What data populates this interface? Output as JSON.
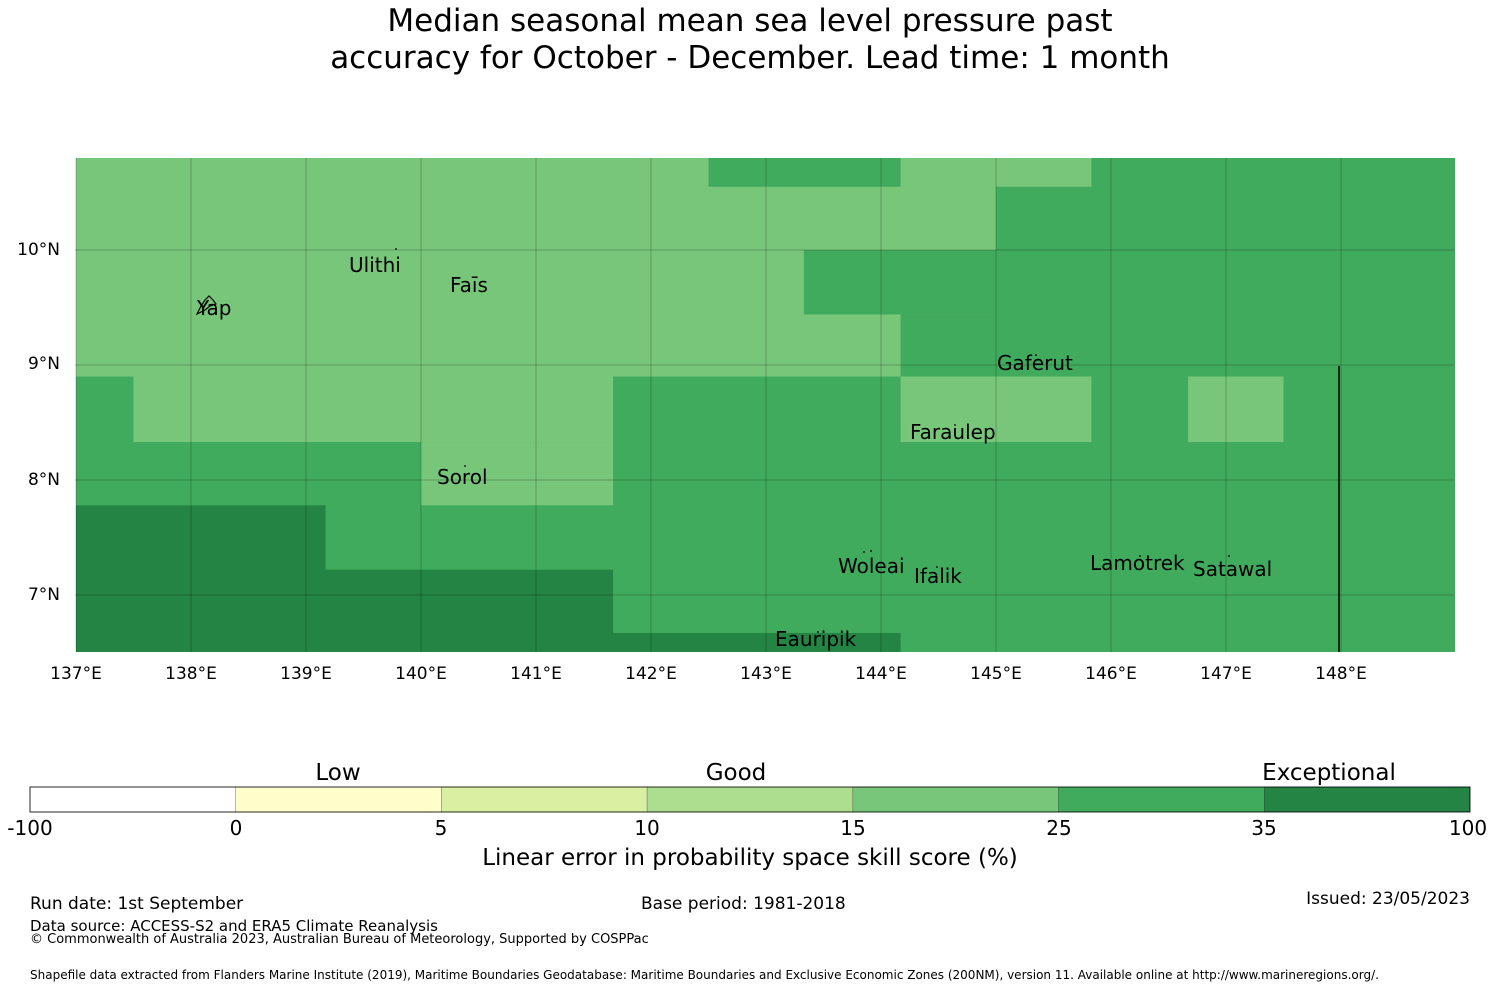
{
  "title": {
    "line1": "Median seasonal mean sea level pressure past",
    "line2": "accuracy for October - December. Lead time: 1 month"
  },
  "map": {
    "x_ticks": [
      "137°E",
      "138°E",
      "139°E",
      "140°E",
      "141°E",
      "142°E",
      "143°E",
      "144°E",
      "145°E",
      "146°E",
      "147°E",
      "148°E"
    ],
    "y_ticks": [
      "10°N",
      "9°N",
      "8°N",
      "7°N"
    ],
    "places": [
      "Yap",
      "Ulithi",
      "Faīs",
      "Gaferut",
      "Faraulep",
      "Sorol",
      "Woleai",
      "Ifalik",
      "Lamotrek",
      "Satawal",
      "Eauripik"
    ],
    "colors": {
      "band_15_25": "#78c679",
      "band_25_35": "#41ab5d",
      "band_35_100": "#238443"
    },
    "cells": [
      {
        "lon": [
          137,
          148.995
        ],
        "lat": [
          6.5,
          10.8
        ],
        "class": "band_25_35"
      },
      {
        "lon": [
          137,
          145
        ],
        "lat": [
          8.9,
          10.8
        ],
        "class": "band_15_25"
      },
      {
        "lon": [
          145,
          145.83
        ],
        "lat": [
          10.55,
          10.8
        ],
        "class": "band_15_25"
      },
      {
        "lon": [
          137.5,
          141.67
        ],
        "lat": [
          8.33,
          8.9
        ],
        "class": "band_15_25"
      },
      {
        "lon": [
          140,
          141.67
        ],
        "lat": [
          7.78,
          8.33
        ],
        "class": "band_15_25"
      },
      {
        "lon": [
          142.5,
          144.17
        ],
        "lat": [
          10.55,
          10.8
        ],
        "class": "band_25_35"
      },
      {
        "lon": [
          143.33,
          145
        ],
        "lat": [
          9.44,
          10.0
        ],
        "class": "band_25_35"
      },
      {
        "lon": [
          144.17,
          145
        ],
        "lat": [
          8.9,
          9.44
        ],
        "class": "band_25_35"
      },
      {
        "lon": [
          144.17,
          145.83
        ],
        "lat": [
          8.33,
          8.9
        ],
        "class": "band_15_25"
      },
      {
        "lon": [
          146.67,
          147.5
        ],
        "lat": [
          8.33,
          8.9
        ],
        "class": "band_15_25"
      },
      {
        "lon": [
          137,
          139.17
        ],
        "lat": [
          6.5,
          7.78
        ],
        "class": "band_35_100"
      },
      {
        "lon": [
          139.17,
          141.67
        ],
        "lat": [
          6.5,
          7.22
        ],
        "class": "band_35_100"
      },
      {
        "lon": [
          141.67,
          144.17
        ],
        "lat": [
          6.5,
          6.67
        ],
        "class": "band_35_100"
      }
    ]
  },
  "colorbar": {
    "categories": [
      "Low",
      "Good",
      "Exceptional"
    ],
    "ticks": [
      "-100",
      "0",
      "5",
      "10",
      "15",
      "25",
      "35",
      "100"
    ],
    "colors": [
      "#ffffff",
      "#ffffcc",
      "#d9f0a3",
      "#addd8e",
      "#78c679",
      "#41ab5d",
      "#238443"
    ],
    "title": "Linear error in probability space skill score (%)"
  },
  "footer": {
    "run_date": "Run date: 1st September",
    "base_period": "Base period: 1981-2018",
    "issued": "Issued: 23/05/2023",
    "data_source": "Data source: ACCESS-S2 and ERA5 Climate Reanalysis",
    "copyright": "© Commonwealth of Australia 2023, Australian Bureau of Meteorology, Supported by COSPPac",
    "shapefile": "Shapefile data extracted from Flanders Marine Institute (2019), Maritime Boundaries Geodatabase: Maritime Boundaries and Exclusive Economic Zones (200NM), version 11. Available online at http://www.marineregions.org/."
  }
}
